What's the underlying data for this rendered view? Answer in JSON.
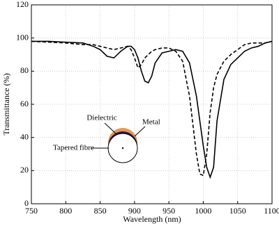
{
  "chart_data": {
    "type": "line",
    "x_label": "Wavelength (nm)",
    "y_label": "Transmittance (%)",
    "x": [
      750,
      775,
      800,
      825,
      840,
      850,
      860,
      870,
      880,
      890,
      895,
      900,
      905,
      910,
      915,
      920,
      925,
      930,
      940,
      950,
      960,
      970,
      980,
      990,
      995,
      1000,
      1005,
      1010,
      1015,
      1020,
      1030,
      1040,
      1050,
      1060,
      1070,
      1080,
      1090,
      1100
    ],
    "series": [
      {
        "color": "#000000",
        "dash": false,
        "values": [
          98,
          98,
          97.5,
          97,
          95,
          93,
          89,
          88,
          92,
          95,
          95,
          93,
          88,
          80,
          74,
          73,
          77,
          85,
          91,
          92,
          93,
          92,
          85,
          65,
          50,
          35,
          22,
          16,
          22,
          50,
          75,
          84,
          88,
          92,
          94,
          95,
          97,
          98
        ]
      },
      {
        "color": "#000000",
        "dash": true,
        "values": [
          98,
          97.5,
          97,
          96,
          96,
          95,
          94,
          93,
          94,
          95,
          93,
          88,
          82,
          84,
          88,
          90,
          92,
          93,
          94,
          94,
          92,
          86,
          65,
          30,
          18,
          17,
          30,
          55,
          70,
          78,
          86,
          90,
          93,
          96,
          97,
          97,
          97,
          98
        ]
      }
    ],
    "xlim": [
      750,
      1100
    ],
    "xticks": [
      750,
      800,
      850,
      900,
      950,
      1000,
      1050,
      1100
    ],
    "ylim": [
      0,
      120
    ],
    "yticks": [
      0,
      20,
      40,
      60,
      80,
      100,
      120
    ],
    "grid": true,
    "inset": {
      "dielectric": "Dielectric",
      "metal": "Metal",
      "fibre": "Tapered fibre"
    }
  }
}
